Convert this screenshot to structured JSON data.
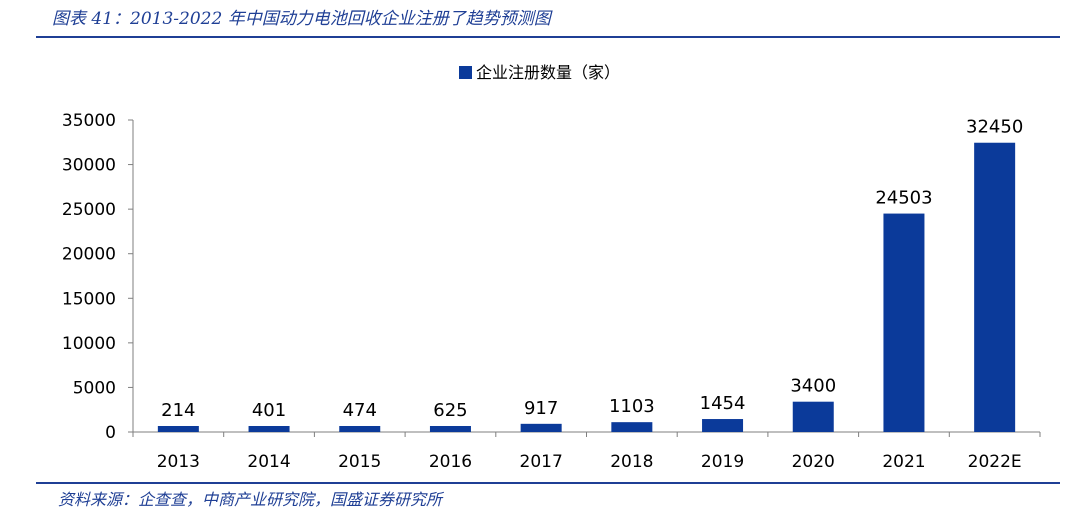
{
  "figure_title": "图表 41：2013-2022 年中国动力电池回收企业注册了趋势预测图",
  "source_note": "资料来源：企查查，中商产业研究院，国盛证券研究所",
  "colors": {
    "bar": "#0b3a9a",
    "rule": "#1f3f95",
    "axis": "#7f7f7f",
    "text": "#000000"
  },
  "chart_data": {
    "type": "bar",
    "title": "",
    "xlabel": "",
    "ylabel": "",
    "legend": {
      "position": "top-center"
    },
    "grid": false,
    "ylim": [
      0,
      35000
    ],
    "yticks": [
      0,
      5000,
      10000,
      15000,
      20000,
      25000,
      30000,
      35000
    ],
    "categories": [
      "2013",
      "2014",
      "2015",
      "2016",
      "2017",
      "2018",
      "2019",
      "2020",
      "2021",
      "2022E"
    ],
    "series": [
      {
        "name": "企业注册数量（家）",
        "values": [
          214,
          401,
          474,
          625,
          917,
          1103,
          1454,
          3400,
          24503,
          32450
        ]
      }
    ]
  }
}
